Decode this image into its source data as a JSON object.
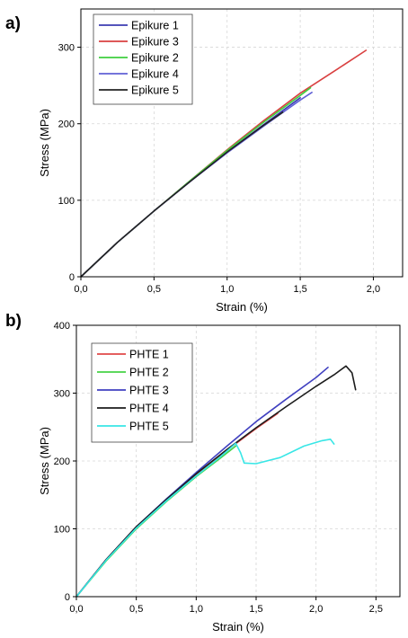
{
  "chart_data": [
    {
      "type": "line",
      "panel_label": "a)",
      "xlabel": "Strain (%)",
      "ylabel": "Stress (MPa)",
      "xlim": [
        0,
        2.2
      ],
      "ylim": [
        0,
        350
      ],
      "xticks": [
        "0,0",
        "0,5",
        "1,0",
        "1,5",
        "2,0"
      ],
      "xtick_values": [
        0,
        0.5,
        1.0,
        1.5,
        2.0
      ],
      "yticks": [
        "0",
        "100",
        "200",
        "300"
      ],
      "ytick_values": [
        0,
        100,
        200,
        300
      ],
      "grid": true,
      "legend_position": "top-left",
      "series": [
        {
          "name": "Epikure 1",
          "color": "#3b3bb3",
          "x": [
            0,
            0.25,
            0.5,
            0.75,
            1.0,
            1.25,
            1.5
          ],
          "y": [
            0,
            45,
            86,
            125,
            163,
            199,
            234
          ]
        },
        {
          "name": "Epikure 3",
          "color": "#d94040",
          "x": [
            0,
            0.25,
            0.5,
            0.75,
            1.0,
            1.25,
            1.5,
            1.75,
            1.95
          ],
          "y": [
            0,
            45,
            86,
            126,
            166,
            204,
            240,
            271,
            296
          ]
        },
        {
          "name": "Epikure 2",
          "color": "#3ecf3e",
          "x": [
            0,
            0.25,
            0.5,
            0.75,
            1.0,
            1.25,
            1.5,
            1.57
          ],
          "y": [
            0,
            45,
            86,
            126,
            165,
            202,
            237,
            247
          ]
        },
        {
          "name": "Epikure 4",
          "color": "#6060d6",
          "x": [
            0,
            0.25,
            0.5,
            0.75,
            1.0,
            1.25,
            1.5,
            1.58
          ],
          "y": [
            0,
            45,
            86,
            125,
            162,
            197,
            231,
            241
          ]
        },
        {
          "name": "Epikure 5",
          "color": "#222222",
          "x": [
            0,
            0.25,
            0.5,
            0.75,
            1.0,
            1.25,
            1.38
          ],
          "y": [
            0,
            45,
            86,
            125,
            163,
            198,
            215
          ]
        }
      ]
    },
    {
      "type": "line",
      "panel_label": "b)",
      "xlabel": "Strain (%)",
      "ylabel": "Stress (MPa)",
      "xlim": [
        0,
        2.7
      ],
      "ylim": [
        0,
        400
      ],
      "xticks": [
        "0,0",
        "0,5",
        "1,0",
        "1,5",
        "2,0",
        "2,5"
      ],
      "xtick_values": [
        0,
        0.5,
        1.0,
        1.5,
        2.0,
        2.5
      ],
      "yticks": [
        "0",
        "100",
        "200",
        "300",
        "400"
      ],
      "ytick_values": [
        0,
        100,
        200,
        300,
        400
      ],
      "grid": true,
      "legend_position": "top-left",
      "series": [
        {
          "name": "PHTE 1",
          "color": "#e04848",
          "x": [
            0,
            0.25,
            0.5,
            0.75,
            1.0,
            1.25,
            1.5,
            1.68
          ],
          "y": [
            0,
            55,
            103,
            142,
            180,
            215,
            248,
            270
          ]
        },
        {
          "name": "PHTE 2",
          "color": "#46d246",
          "x": [
            0,
            0.25,
            0.5,
            0.75,
            1.0,
            1.2,
            1.33
          ],
          "y": [
            0,
            53,
            100,
            140,
            177,
            204,
            222
          ]
        },
        {
          "name": "PHTE 3",
          "color": "#4040c0",
          "x": [
            0,
            0.25,
            0.5,
            0.75,
            1.0,
            1.25,
            1.5,
            1.75,
            2.0,
            2.1
          ],
          "y": [
            0,
            55,
            103,
            144,
            183,
            221,
            258,
            291,
            323,
            338
          ]
        },
        {
          "name": "PHTE 4",
          "color": "#1c1c1c",
          "x": [
            0,
            0.25,
            0.5,
            0.75,
            1.0,
            1.25,
            1.5,
            1.75,
            2.0,
            2.15,
            2.25,
            2.3,
            2.33
          ],
          "y": [
            0,
            55,
            103,
            143,
            181,
            216,
            249,
            280,
            310,
            327,
            340,
            330,
            305
          ]
        },
        {
          "name": "PHTE 5",
          "color": "#38e6e6",
          "x": [
            0,
            0.25,
            0.5,
            0.75,
            1.0,
            1.2,
            1.33,
            1.37,
            1.4,
            1.5,
            1.7,
            1.9,
            2.05,
            2.12,
            2.15
          ],
          "y": [
            0,
            54,
            101,
            141,
            178,
            206,
            226,
            212,
            197,
            196,
            205,
            222,
            230,
            232,
            225
          ]
        }
      ]
    }
  ]
}
